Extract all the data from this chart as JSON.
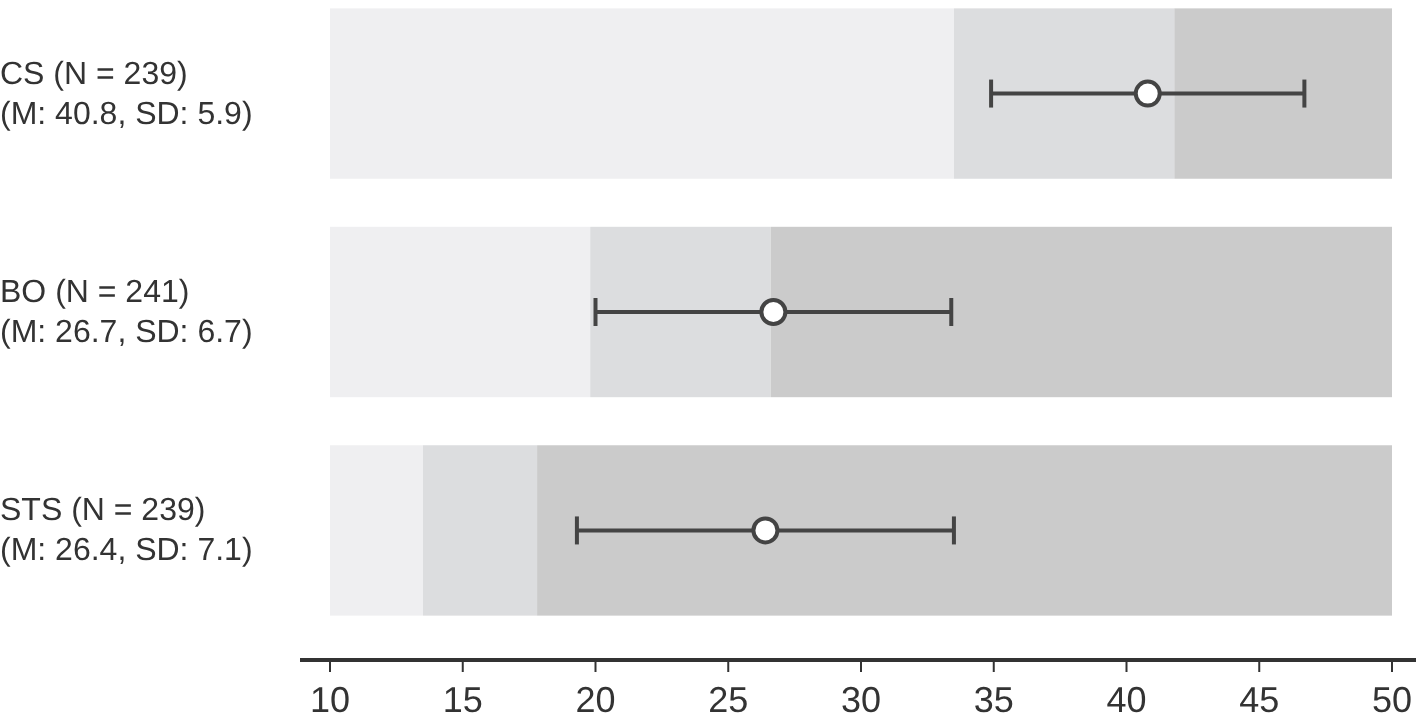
{
  "chart_data": {
    "type": "bar",
    "orientation": "horizontal",
    "categories": [
      "CS (N = 239)\n(M: 40.8, SD: 5.9)",
      "BO (N = 241)\n(M: 26.7, SD: 6.7)",
      "STS (N = 239)\n(M: 26.4, SD: 7.1)"
    ],
    "series": [
      {
        "color": "#efeff1",
        "base": [
          10,
          10,
          10
        ],
        "values": [
          23.5,
          9.8,
          3.5
        ]
      },
      {
        "color": "#dcdddf",
        "base": [
          33.5,
          19.8,
          13.5
        ],
        "values": [
          8.3,
          6.8,
          4.3
        ]
      },
      {
        "color": "#cbcbcb",
        "base": [
          41.8,
          26.6,
          17.8
        ],
        "values": [
          8.2,
          23.4,
          32.2
        ]
      },
      {
        "type": "scatter",
        "color": "#444444",
        "values": [
          40.8,
          26.7,
          26.4
        ],
        "errors": [
          5.9,
          6.7,
          7.1
        ]
      }
    ],
    "marker": "circle",
    "xlim": [
      10,
      50
    ],
    "xticks": [
      10,
      15,
      20,
      25,
      30,
      35,
      40,
      45,
      50
    ],
    "grid": false
  }
}
